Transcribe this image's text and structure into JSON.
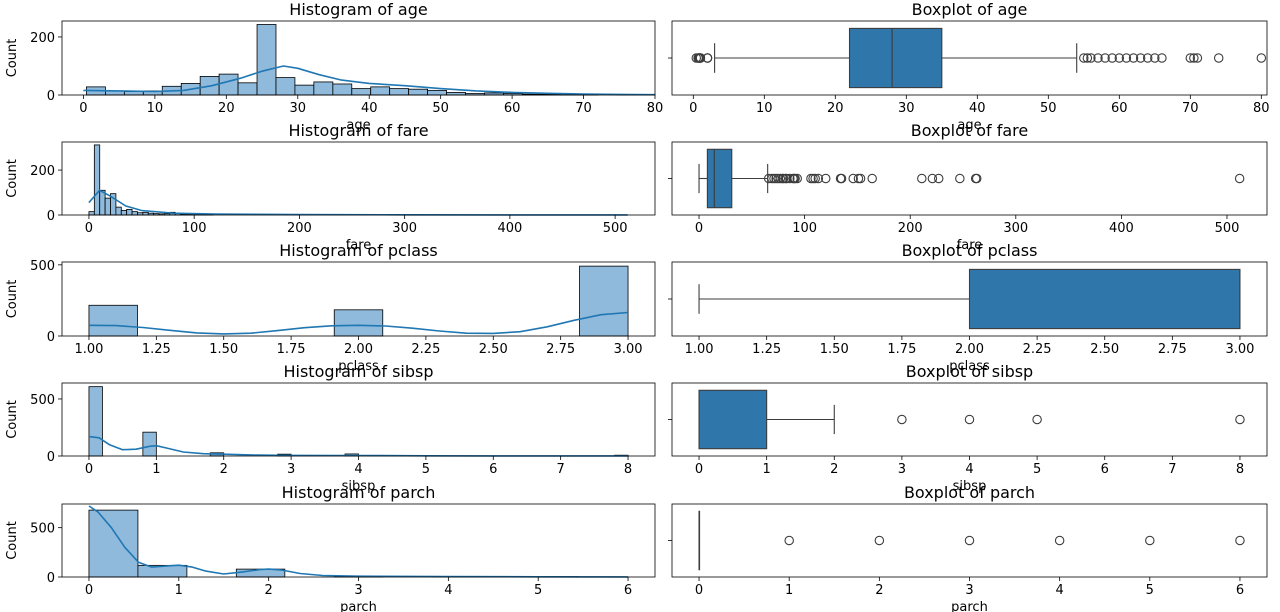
{
  "colors": {
    "hist_fill": "#8fbadc",
    "kde": "#1f77b4",
    "box_fill": "#2f76ab",
    "line": "#3d3d3d",
    "axes": "#000000"
  },
  "chart_data": [
    {
      "type": "bar",
      "subtype": "histogram",
      "title": "Histogram of age",
      "xlabel": "age",
      "ylabel": "Count",
      "xlim": [
        -3,
        80
      ],
      "ylim": [
        0,
        255
      ],
      "xticks": [
        0,
        10,
        20,
        30,
        40,
        50,
        60,
        70,
        80
      ],
      "xtick_labels": [
        "0",
        "10",
        "20",
        "30",
        "40",
        "50",
        "60",
        "70",
        "80"
      ],
      "yticks": [
        0,
        200
      ],
      "ytick_labels": [
        "0",
        "200"
      ],
      "bin_edges": [
        0.42,
        3.08,
        5.73,
        8.38,
        11.03,
        13.69,
        16.34,
        18.99,
        21.64,
        24.3,
        26.95,
        29.6,
        32.25,
        34.91,
        37.56,
        40.21,
        42.86,
        45.52,
        48.17,
        50.82,
        53.47,
        56.13,
        58.78,
        61.43,
        64.08,
        66.74,
        69.39,
        72.04,
        74.69,
        77.35,
        80.0
      ],
      "counts": [
        28,
        14,
        12,
        14,
        30,
        40,
        64,
        72,
        42,
        243,
        60,
        34,
        45,
        38,
        22,
        28,
        22,
        20,
        16,
        9,
        5,
        7,
        5,
        3,
        2,
        1,
        2,
        0,
        1,
        1
      ],
      "kde_x": [
        0,
        5,
        10,
        14,
        18,
        22,
        25,
        28,
        30,
        33,
        36,
        40,
        45,
        50,
        55,
        60,
        65,
        70,
        75,
        80
      ],
      "kde_y": [
        16,
        14,
        12,
        16,
        32,
        58,
        82,
        100,
        92,
        70,
        52,
        40,
        32,
        22,
        14,
        9,
        6,
        3,
        2,
        1
      ]
    },
    {
      "type": "box",
      "title": "Boxplot of age",
      "xlabel": "age",
      "xlim": [
        -3,
        80.8
      ],
      "xticks": [
        0,
        10,
        20,
        30,
        40,
        50,
        60,
        70,
        80
      ],
      "xtick_labels": [
        "0",
        "10",
        "20",
        "30",
        "40",
        "50",
        "60",
        "70",
        "80"
      ],
      "whisker_low": 3,
      "q1": 22,
      "median": 28,
      "q3": 35,
      "whisker_high": 54,
      "outliers": [
        0.42,
        0.67,
        0.75,
        0.83,
        0.92,
        1,
        1,
        1,
        2,
        2,
        2,
        55,
        55.5,
        56,
        57,
        58,
        59,
        60,
        61,
        62,
        63,
        64,
        65,
        66,
        70,
        70.5,
        71,
        74,
        80
      ]
    },
    {
      "type": "bar",
      "subtype": "histogram",
      "title": "Histogram of fare",
      "xlabel": "fare",
      "ylabel": "Count",
      "xlim": [
        -25.6,
        537.9
      ],
      "ylim": [
        0,
        325
      ],
      "xticks": [
        0,
        100,
        200,
        300,
        400,
        500
      ],
      "xtick_labels": [
        "0",
        "100",
        "200",
        "300",
        "400",
        "500"
      ],
      "yticks": [
        0,
        200
      ],
      "ytick_labels": [
        "0",
        "200"
      ],
      "bin_edges": [
        0,
        5.12,
        10.25,
        15.37,
        20.49,
        25.62,
        30.74,
        35.86,
        40.99,
        46.11,
        51.23,
        56.36,
        61.48,
        66.6,
        71.72,
        76.85,
        81.97,
        87.09,
        92.22,
        97.34,
        102.46,
        107.59,
        112.71,
        117.83
      ],
      "counts": [
        15,
        312,
        110,
        75,
        95,
        35,
        20,
        25,
        15,
        10,
        12,
        8,
        6,
        5,
        6,
        12,
        8,
        4,
        3,
        2,
        3,
        2,
        3
      ],
      "kde_x": [
        0,
        10,
        20,
        35,
        50,
        80,
        120,
        200,
        300,
        400,
        512
      ],
      "kde_y": [
        55,
        110,
        85,
        40,
        20,
        8,
        4,
        2,
        1,
        0.5,
        0.5
      ]
    },
    {
      "type": "box",
      "title": "Boxplot of fare",
      "xlabel": "fare",
      "xlim": [
        -25.6,
        537.9
      ],
      "xticks": [
        0,
        100,
        200,
        300,
        400,
        500
      ],
      "xtick_labels": [
        "0",
        "100",
        "200",
        "300",
        "400",
        "500"
      ],
      "whisker_low": 0,
      "q1": 7.9,
      "median": 14.45,
      "q3": 31,
      "whisker_high": 65,
      "outliers": [
        66,
        69,
        71,
        73,
        75,
        77,
        79,
        80,
        82,
        83,
        86,
        89,
        90,
        91,
        93,
        106,
        108,
        110,
        113,
        120,
        134,
        135,
        146,
        151,
        153,
        164,
        211,
        221,
        227,
        247,
        262,
        263,
        512
      ]
    },
    {
      "type": "bar",
      "subtype": "histogram",
      "title": "Histogram of pclass",
      "xlabel": "pclass",
      "ylabel": "Count",
      "xlim": [
        0.9,
        3.1
      ],
      "ylim": [
        0,
        520
      ],
      "xticks": [
        1.0,
        1.25,
        1.5,
        1.75,
        2.0,
        2.25,
        2.5,
        2.75,
        3.0
      ],
      "xtick_labels": [
        "1.00",
        "1.25",
        "1.50",
        "1.75",
        "2.00",
        "2.25",
        "2.50",
        "2.75",
        "3.00"
      ],
      "yticks": [
        0,
        500
      ],
      "ytick_labels": [
        "0",
        "500"
      ],
      "bin_edges": [
        1.0,
        1.18,
        1.36,
        1.55,
        1.73,
        1.91,
        2.09,
        2.27,
        2.45,
        2.64,
        2.82,
        3.0
      ],
      "counts": [
        216,
        0,
        0,
        0,
        0,
        184,
        0,
        0,
        0,
        0,
        491
      ],
      "kde_x": [
        1.0,
        1.1,
        1.2,
        1.3,
        1.4,
        1.5,
        1.6,
        1.7,
        1.8,
        1.9,
        2.0,
        2.1,
        2.2,
        2.3,
        2.4,
        2.5,
        2.6,
        2.7,
        2.8,
        2.9,
        3.0
      ],
      "kde_y": [
        75,
        73,
        60,
        40,
        22,
        15,
        20,
        38,
        58,
        72,
        75,
        70,
        55,
        35,
        20,
        18,
        30,
        65,
        110,
        150,
        165
      ]
    },
    {
      "type": "box",
      "title": "Boxplot of pclass",
      "xlabel": "pclass",
      "xlim": [
        0.9,
        3.1
      ],
      "xticks": [
        1.0,
        1.25,
        1.5,
        1.75,
        2.0,
        2.25,
        2.5,
        2.75,
        3.0
      ],
      "xtick_labels": [
        "1.00",
        "1.25",
        "1.50",
        "1.75",
        "2.00",
        "2.25",
        "2.50",
        "2.75",
        "3.00"
      ],
      "whisker_low": 1,
      "q1": 2,
      "median": 3,
      "q3": 3,
      "whisker_high": 3,
      "outliers": []
    },
    {
      "type": "bar",
      "subtype": "histogram",
      "title": "Histogram of sibsp",
      "xlabel": "sibsp",
      "ylabel": "Count",
      "xlim": [
        -0.4,
        8.4
      ],
      "ylim": [
        0,
        640
      ],
      "xticks": [
        0,
        1,
        2,
        3,
        4,
        5,
        6,
        7,
        8
      ],
      "xtick_labels": [
        "0",
        "1",
        "2",
        "3",
        "4",
        "5",
        "6",
        "7",
        "8"
      ],
      "yticks": [
        0,
        500
      ],
      "ytick_labels": [
        "0",
        "500"
      ],
      "bin_edges": [
        0,
        0.2,
        0.8,
        1.0,
        1.2,
        1.8,
        2.0,
        2.2,
        2.8,
        3.0,
        3.2,
        3.8,
        4.0,
        4.2,
        4.8,
        5.0,
        5.2,
        7.8,
        8.0
      ],
      "counts": [
        608,
        0,
        209,
        0,
        0,
        28,
        0,
        0,
        16,
        0,
        0,
        18,
        0,
        0,
        5,
        0,
        0,
        7
      ],
      "kde_x": [
        0,
        0.15,
        0.3,
        0.5,
        0.7,
        0.9,
        1.0,
        1.15,
        1.4,
        1.7,
        2.0,
        2.5,
        3.0,
        4.0,
        5.0,
        6.0,
        7.0,
        8.0
      ],
      "kde_y": [
        170,
        160,
        100,
        55,
        60,
        85,
        90,
        70,
        35,
        20,
        16,
        8,
        5,
        4,
        2,
        1,
        1,
        1
      ]
    },
    {
      "type": "box",
      "title": "Boxplot of sibsp",
      "xlabel": "sibsp",
      "xlim": [
        -0.4,
        8.4
      ],
      "xticks": [
        0,
        1,
        2,
        3,
        4,
        5,
        6,
        7,
        8
      ],
      "xtick_labels": [
        "0",
        "1",
        "2",
        "3",
        "4",
        "5",
        "6",
        "7",
        "8"
      ],
      "whisker_low": 0,
      "q1": 0,
      "median": 0,
      "q3": 1,
      "whisker_high": 2,
      "outliers": [
        3,
        4,
        5,
        8
      ]
    },
    {
      "type": "bar",
      "subtype": "histogram",
      "title": "Histogram of parch",
      "xlabel": "parch",
      "ylabel": "Count",
      "xlim": [
        -0.3,
        6.3
      ],
      "ylim": [
        0,
        740
      ],
      "xticks": [
        0,
        1,
        2,
        3,
        4,
        5,
        6
      ],
      "xtick_labels": [
        "0",
        "1",
        "2",
        "3",
        "4",
        "5",
        "6"
      ],
      "yticks": [
        0,
        500
      ],
      "ytick_labels": [
        "0",
        "500"
      ],
      "bin_edges": [
        0,
        0.545,
        1.09,
        1.64,
        2.18,
        2.73,
        3.27,
        3.82,
        4.36,
        4.91,
        5.45,
        6.0
      ],
      "counts": [
        678,
        118,
        0,
        80,
        0,
        5,
        0,
        4,
        0,
        5,
        1
      ],
      "kde_x": [
        0,
        0.1,
        0.25,
        0.4,
        0.55,
        0.7,
        0.85,
        1.0,
        1.15,
        1.3,
        1.5,
        1.7,
        1.9,
        2.0,
        2.15,
        2.35,
        2.6,
        3.0,
        4.0,
        5.0,
        6.0
      ],
      "kde_y": [
        720,
        660,
        500,
        300,
        150,
        100,
        110,
        120,
        100,
        60,
        30,
        50,
        75,
        80,
        70,
        35,
        15,
        8,
        4,
        2,
        1
      ]
    },
    {
      "type": "box",
      "title": "Boxplot of parch",
      "xlabel": "parch",
      "xlim": [
        -0.3,
        6.3
      ],
      "xticks": [
        0,
        1,
        2,
        3,
        4,
        5,
        6
      ],
      "xtick_labels": [
        "0",
        "1",
        "2",
        "3",
        "4",
        "5",
        "6"
      ],
      "whisker_low": 0,
      "q1": 0,
      "median": 0,
      "q3": 0,
      "whisker_high": 0,
      "outliers": [
        1,
        2,
        3,
        4,
        5,
        6
      ]
    }
  ]
}
